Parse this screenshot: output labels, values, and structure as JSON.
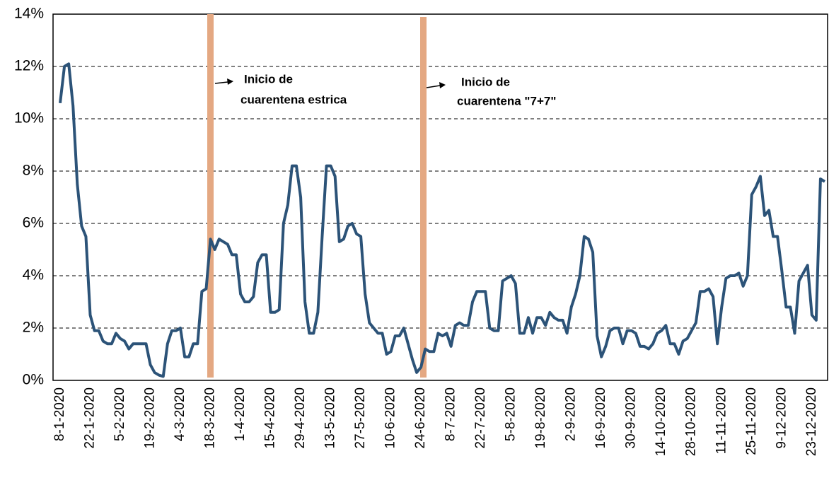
{
  "chart_data": {
    "type": "line",
    "categories": [
      "8-1-2020",
      null,
      null,
      null,
      null,
      null,
      null,
      "22-1-2020",
      null,
      null,
      null,
      null,
      null,
      null,
      "5-2-2020",
      null,
      null,
      null,
      null,
      null,
      null,
      "19-2-2020",
      null,
      null,
      null,
      null,
      null,
      null,
      "4-3-2020",
      null,
      null,
      null,
      null,
      null,
      null,
      "18-3-2020",
      null,
      null,
      null,
      null,
      null,
      null,
      "1-4-2020",
      null,
      null,
      null,
      null,
      null,
      null,
      "15-4-2020",
      null,
      null,
      null,
      null,
      null,
      null,
      "29-4-2020",
      null,
      null,
      null,
      null,
      null,
      null,
      "13-5-2020",
      null,
      null,
      null,
      null,
      null,
      null,
      "27-5-2020",
      null,
      null,
      null,
      null,
      null,
      null,
      "10-6-2020",
      null,
      null,
      null,
      null,
      null,
      null,
      "24-6-2020",
      null,
      null,
      null,
      null,
      null,
      null,
      "8-7-2020",
      null,
      null,
      null,
      null,
      null,
      null,
      "22-7-2020",
      null,
      null,
      null,
      null,
      null,
      null,
      "5-8-2020",
      null,
      null,
      null,
      null,
      null,
      null,
      "19-8-2020",
      null,
      null,
      null,
      null,
      null,
      null,
      "2-9-2020",
      null,
      null,
      null,
      null,
      null,
      null,
      "16-9-2020",
      null,
      null,
      null,
      null,
      null,
      null,
      "30-9-2020",
      null,
      null,
      null,
      null,
      null,
      null,
      "14-10-2020",
      null,
      null,
      null,
      null,
      null,
      null,
      "28-10-2020",
      null,
      null,
      null,
      null,
      null,
      null,
      "11-11-2020",
      null,
      null,
      null,
      null,
      null,
      null,
      "25-11-2020",
      null,
      null,
      null,
      null,
      null,
      null,
      "9-12-2020",
      null,
      null,
      null,
      null,
      null,
      null,
      "23-12-2020",
      null,
      null,
      null
    ],
    "values": [
      10.6,
      12.0,
      12.1,
      10.5,
      7.5,
      5.9,
      5.5,
      2.5,
      1.9,
      1.9,
      1.5,
      1.4,
      1.4,
      1.8,
      1.6,
      1.5,
      1.2,
      1.4,
      1.4,
      1.4,
      1.4,
      0.6,
      0.3,
      0.2,
      0.15,
      1.4,
      1.9,
      1.9,
      2.0,
      0.9,
      0.9,
      1.4,
      1.4,
      3.4,
      3.5,
      5.4,
      5.0,
      5.4,
      5.3,
      5.2,
      4.8,
      4.8,
      3.3,
      3.0,
      3.0,
      3.2,
      4.5,
      4.8,
      4.8,
      2.6,
      2.6,
      2.7,
      6.0,
      6.7,
      8.2,
      8.2,
      7.0,
      3.0,
      1.8,
      1.8,
      2.6,
      5.5,
      8.2,
      8.2,
      7.8,
      5.3,
      5.4,
      5.9,
      6.0,
      5.6,
      5.5,
      3.3,
      2.2,
      2.0,
      1.8,
      1.8,
      1.0,
      1.1,
      1.7,
      1.7,
      2.0,
      1.4,
      0.8,
      0.3,
      0.5,
      1.2,
      1.1,
      1.1,
      1.8,
      1.7,
      1.8,
      1.3,
      2.1,
      2.2,
      2.1,
      2.1,
      3.0,
      3.4,
      3.4,
      3.4,
      2.0,
      1.9,
      1.9,
      3.8,
      3.9,
      4.0,
      3.7,
      1.8,
      1.8,
      2.4,
      1.8,
      2.4,
      2.4,
      2.1,
      2.6,
      2.4,
      2.3,
      2.3,
      1.8,
      2.8,
      3.3,
      4.0,
      5.5,
      5.4,
      4.9,
      1.7,
      0.9,
      1.3,
      1.9,
      2.0,
      2.0,
      1.4,
      1.9,
      1.9,
      1.8,
      1.3,
      1.3,
      1.2,
      1.4,
      1.8,
      1.9,
      2.1,
      1.4,
      1.4,
      1.0,
      1.5,
      1.6,
      1.9,
      2.2,
      3.4,
      3.4,
      3.5,
      3.2,
      1.4,
      2.8,
      3.9,
      4.0,
      4.0,
      4.1,
      3.6,
      4.0,
      7.1,
      7.4,
      7.8,
      6.3,
      6.5,
      5.5,
      5.5,
      4.2,
      2.8,
      2.8,
      1.8,
      3.8,
      4.1,
      4.4,
      2.5,
      2.3,
      7.7,
      7.6
    ],
    "color": "#2c5378",
    "ylim": [
      0,
      14
    ],
    "yticks": [
      {
        "value": 0,
        "label": "0%"
      },
      {
        "value": 2,
        "label": "2%"
      },
      {
        "value": 4,
        "label": "4%"
      },
      {
        "value": 6,
        "label": "6%"
      },
      {
        "value": 8,
        "label": "8%"
      },
      {
        "value": 10,
        "label": "10%"
      },
      {
        "value": 12,
        "label": "12%"
      },
      {
        "value": 14,
        "label": "14%"
      }
    ],
    "grid": true,
    "annotations": [
      [
        "Inicio de",
        "cuarentena estrica"
      ],
      [
        "Inicio de",
        "cuarentena \"7+7\""
      ]
    ]
  }
}
